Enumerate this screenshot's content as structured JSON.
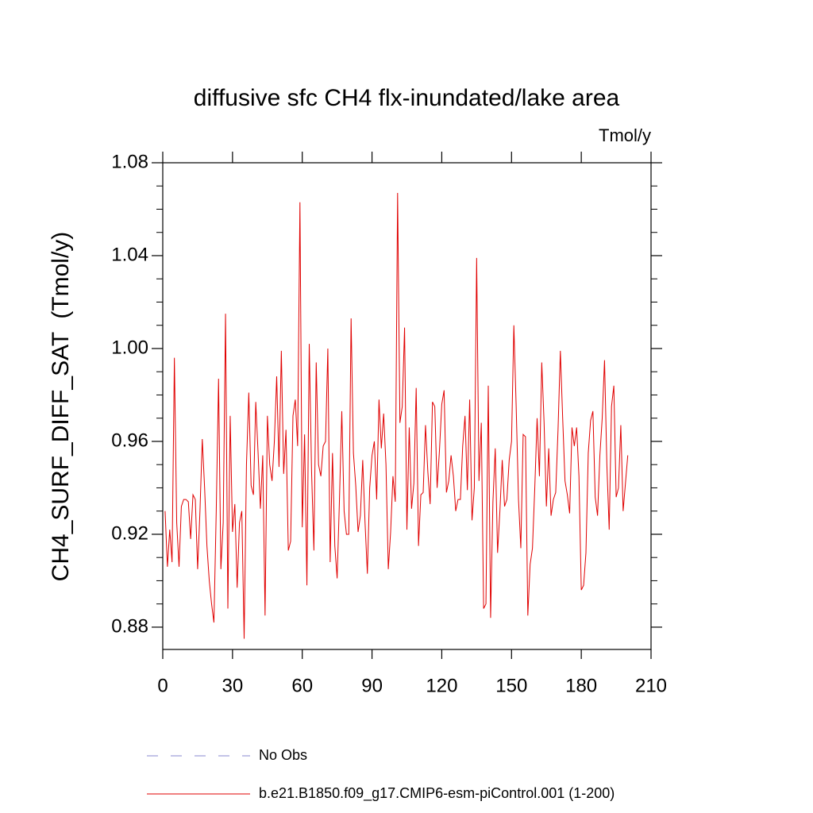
{
  "chart_data": {
    "type": "line",
    "title": "diffusive sfc CH4 flx-inundated/lake area",
    "units": "Tmol/y",
    "y_label": "CH4_SURF_DIFF_SAT  (Tmol/y)",
    "xlim": [
      0,
      210
    ],
    "xticks": [
      0,
      30,
      60,
      90,
      120,
      150,
      180,
      210
    ],
    "ylim": [
      0.8704,
      1.08
    ],
    "yticks": [
      0.88,
      0.92,
      0.96,
      {
        "value": 1,
        "label": "1.00"
      },
      1.04,
      1.08
    ],
    "yminor_step": 0.01,
    "reference": {
      "name": "No Obs",
      "color": "#8a8ad0",
      "dashed": true
    },
    "x": [
      1,
      2,
      3,
      4,
      5,
      6,
      7,
      8,
      9,
      10,
      11,
      12,
      13,
      14,
      15,
      16,
      17,
      18,
      19,
      20,
      21,
      22,
      23,
      24,
      25,
      26,
      27,
      28,
      29,
      30,
      31,
      32,
      33,
      34,
      35,
      36,
      37,
      38,
      39,
      40,
      41,
      42,
      43,
      44,
      45,
      46,
      47,
      48,
      49,
      50,
      51,
      52,
      53,
      54,
      55,
      56,
      57,
      58,
      59,
      60,
      61,
      62,
      63,
      64,
      65,
      66,
      67,
      68,
      69,
      70,
      71,
      72,
      73,
      74,
      75,
      76,
      77,
      78,
      79,
      80,
      81,
      82,
      83,
      84,
      85,
      86,
      87,
      88,
      89,
      90,
      91,
      92,
      93,
      94,
      95,
      96,
      97,
      98,
      99,
      100,
      101,
      102,
      103,
      104,
      105,
      106,
      107,
      108,
      109,
      110,
      111,
      112,
      113,
      114,
      115,
      116,
      117,
      118,
      119,
      120,
      121,
      122,
      123,
      124,
      125,
      126,
      127,
      128,
      129,
      130,
      131,
      132,
      133,
      134,
      135,
      136,
      137,
      138,
      139,
      140,
      141,
      142,
      143,
      144,
      145,
      146,
      147,
      148,
      149,
      150,
      151,
      152,
      153,
      154,
      155,
      156,
      157,
      158,
      159,
      160,
      161,
      162,
      163,
      164,
      165,
      166,
      167,
      168,
      169,
      170,
      171,
      172,
      173,
      174,
      175,
      176,
      177,
      178,
      179,
      180,
      181,
      182,
      183,
      184,
      185,
      186,
      187,
      188,
      189,
      190,
      191,
      192,
      193,
      194,
      195,
      196,
      197,
      198,
      199,
      200
    ],
    "series": [
      {
        "name": "b.e21.B1850.f09_g17.CMIP6-esm-piControl.001 (1-200)",
        "color": "#e00000",
        "values": [
          0.93,
          0.906,
          0.922,
          0.908,
          0.996,
          0.925,
          0.906,
          0.932,
          0.935,
          0.935,
          0.934,
          0.918,
          0.937,
          0.935,
          0.905,
          0.93,
          0.961,
          0.94,
          0.915,
          0.9,
          0.89,
          0.882,
          0.93,
          0.987,
          0.905,
          0.925,
          1.015,
          0.888,
          0.971,
          0.921,
          0.933,
          0.897,
          0.925,
          0.93,
          0.875,
          0.95,
          0.981,
          0.941,
          0.937,
          0.977,
          0.955,
          0.931,
          0.954,
          0.885,
          0.971,
          0.95,
          0.943,
          0.96,
          0.988,
          0.949,
          0.999,
          0.946,
          0.965,
          0.913,
          0.917,
          0.971,
          0.978,
          0.958,
          1.063,
          0.923,
          0.963,
          0.898,
          1.002,
          0.947,
          0.913,
          0.994,
          0.95,
          0.945,
          0.958,
          0.96,
          1.0,
          0.908,
          0.955,
          0.915,
          0.901,
          0.935,
          0.973,
          0.93,
          0.92,
          0.92,
          1.013,
          0.955,
          0.941,
          0.921,
          0.928,
          0.952,
          0.925,
          0.903,
          0.94,
          0.954,
          0.96,
          0.935,
          0.978,
          0.957,
          0.972,
          0.95,
          0.905,
          0.921,
          0.945,
          0.934,
          1.067,
          0.968,
          0.975,
          1.009,
          0.922,
          0.966,
          0.931,
          0.942,
          0.983,
          0.915,
          0.937,
          0.938,
          0.967,
          0.947,
          0.933,
          0.977,
          0.975,
          0.94,
          0.956,
          0.976,
          0.982,
          0.938,
          0.943,
          0.954,
          0.945,
          0.93,
          0.935,
          0.935,
          0.958,
          0.971,
          0.939,
          0.978,
          0.926,
          0.94,
          1.039,
          0.943,
          0.968,
          0.888,
          0.89,
          0.984,
          0.884,
          0.934,
          0.957,
          0.912,
          0.93,
          0.952,
          0.932,
          0.935,
          0.952,
          0.96,
          1.01,
          0.975,
          0.935,
          0.914,
          0.963,
          0.962,
          0.885,
          0.907,
          0.914,
          0.94,
          0.97,
          0.945,
          0.994,
          0.968,
          0.932,
          0.957,
          0.928,
          0.935,
          0.938,
          0.965,
          0.999,
          0.97,
          0.943,
          0.937,
          0.929,
          0.966,
          0.958,
          0.966,
          0.945,
          0.896,
          0.898,
          0.912,
          0.955,
          0.969,
          0.973,
          0.936,
          0.928,
          0.954,
          0.97,
          0.995,
          0.95,
          0.922,
          0.975,
          0.984,
          0.936,
          0.94,
          0.967,
          0.93,
          0.942,
          0.954
        ]
      }
    ]
  }
}
